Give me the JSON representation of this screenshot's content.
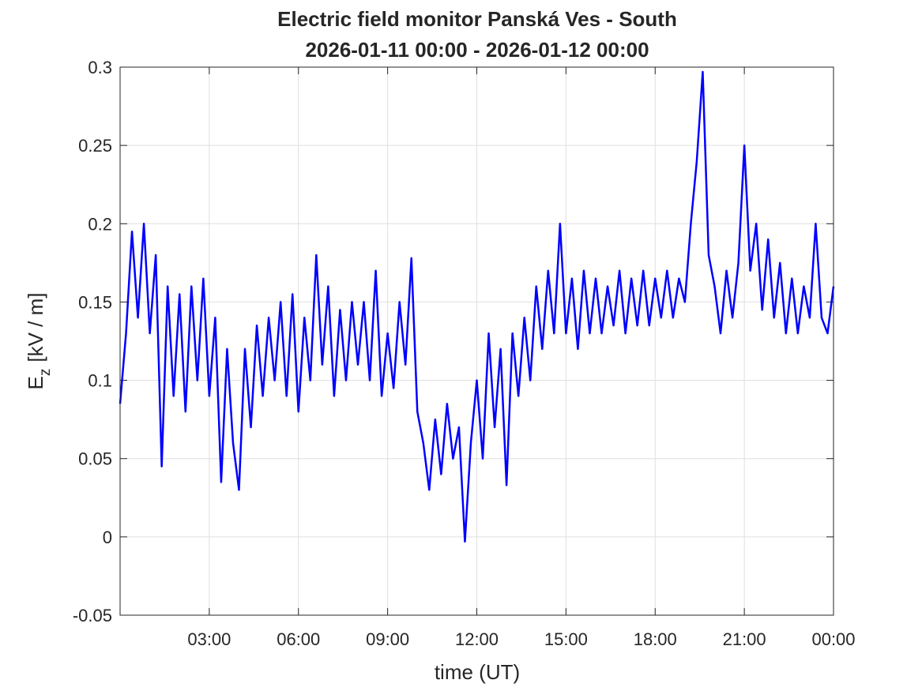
{
  "chart_data": {
    "type": "line",
    "title": "Electric field monitor Panská Ves - South",
    "subtitle": "2026-01-11 00:00 - 2026-01-12 00:00",
    "xlabel": "time (UT)",
    "ylabel": "E",
    "ylabel_sub": "z",
    "ylabel_rest": "[kV / m]",
    "xlim": [
      0,
      24
    ],
    "ylim": [
      -0.05,
      0.3
    ],
    "xticks": [
      {
        "value": 3,
        "label": "03:00"
      },
      {
        "value": 6,
        "label": "06:00"
      },
      {
        "value": 9,
        "label": "09:00"
      },
      {
        "value": 12,
        "label": "12:00"
      },
      {
        "value": 15,
        "label": "15:00"
      },
      {
        "value": 18,
        "label": "18:00"
      },
      {
        "value": 21,
        "label": "21:00"
      },
      {
        "value": 24,
        "label": "00:00"
      }
    ],
    "yticks": [
      -0.05,
      0,
      0.05,
      0.1,
      0.15,
      0.2,
      0.25,
      0.3
    ],
    "grid": true,
    "x": [
      0,
      0.2,
      0.4,
      0.6,
      0.8,
      1,
      1.2,
      1.4,
      1.6,
      1.8,
      2,
      2.2,
      2.4,
      2.6,
      2.8,
      3,
      3.2,
      3.4,
      3.6,
      3.8,
      4,
      4.2,
      4.4,
      4.6,
      4.8,
      5,
      5.2,
      5.4,
      5.6,
      5.8,
      6,
      6.2,
      6.4,
      6.6,
      6.8,
      7,
      7.2,
      7.4,
      7.6,
      7.8,
      8,
      8.2,
      8.4,
      8.6,
      8.8,
      9,
      9.2,
      9.4,
      9.6,
      9.8,
      10,
      10.2,
      10.4,
      10.6,
      10.8,
      11,
      11.2,
      11.4,
      11.6,
      11.8,
      12,
      12.2,
      12.4,
      12.6,
      12.8,
      13,
      13.2,
      13.4,
      13.6,
      13.8,
      14,
      14.2,
      14.4,
      14.6,
      14.8,
      15,
      15.2,
      15.4,
      15.6,
      15.8,
      16,
      16.2,
      16.4,
      16.6,
      16.8,
      17,
      17.2,
      17.4,
      17.6,
      17.8,
      18,
      18.2,
      18.4,
      18.6,
      18.8,
      19,
      19.2,
      19.4,
      19.6,
      19.8,
      20,
      20.2,
      20.4,
      20.6,
      20.8,
      21,
      21.2,
      21.4,
      21.6,
      21.8,
      22,
      22.2,
      22.4,
      22.6,
      22.8,
      23,
      23.2,
      23.4,
      23.6,
      23.8,
      24
    ],
    "series": [
      {
        "color": "#0000ff",
        "values": [
          0.085,
          0.13,
          0.195,
          0.14,
          0.2,
          0.13,
          0.18,
          0.045,
          0.16,
          0.09,
          0.155,
          0.08,
          0.16,
          0.1,
          0.165,
          0.09,
          0.14,
          0.035,
          0.12,
          0.06,
          0.03,
          0.12,
          0.07,
          0.135,
          0.09,
          0.14,
          0.1,
          0.15,
          0.09,
          0.155,
          0.08,
          0.14,
          0.1,
          0.18,
          0.11,
          0.16,
          0.09,
          0.145,
          0.1,
          0.15,
          0.11,
          0.15,
          0.1,
          0.17,
          0.09,
          0.13,
          0.095,
          0.15,
          0.11,
          0.178,
          0.08,
          0.06,
          0.03,
          0.075,
          0.04,
          0.085,
          0.05,
          0.07,
          -0.003,
          0.06,
          0.1,
          0.05,
          0.13,
          0.07,
          0.12,
          0.033,
          0.13,
          0.09,
          0.14,
          0.1,
          0.16,
          0.12,
          0.17,
          0.13,
          0.2,
          0.13,
          0.165,
          0.12,
          0.17,
          0.13,
          0.165,
          0.13,
          0.16,
          0.135,
          0.17,
          0.13,
          0.165,
          0.135,
          0.17,
          0.135,
          0.165,
          0.14,
          0.17,
          0.14,
          0.165,
          0.15,
          0.2,
          0.24,
          0.297,
          0.18,
          0.16,
          0.13,
          0.17,
          0.14,
          0.175,
          0.25,
          0.17,
          0.2,
          0.145,
          0.19,
          0.14,
          0.175,
          0.13,
          0.165,
          0.13,
          0.16,
          0.14,
          0.2,
          0.14,
          0.13,
          0.16
        ]
      }
    ]
  }
}
